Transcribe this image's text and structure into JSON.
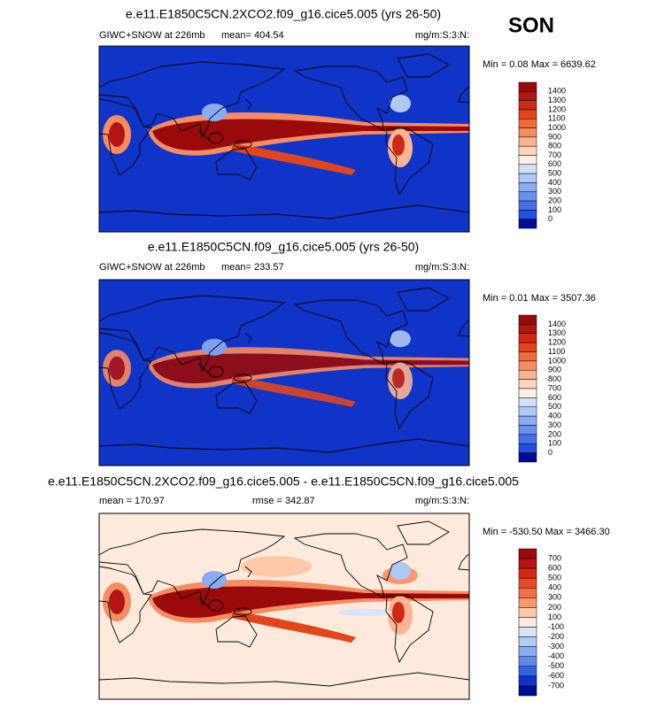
{
  "season": "SON",
  "panels": [
    {
      "title": "e.e11.E1850C5CN.2XCO2.f09_g16.cice5.005 (yrs 26-50)",
      "left_label": "GIWC+SNOW at 226mb",
      "center_label": "mean= 404.54",
      "units": "mg/m:S:3:N:",
      "min_max": "Min =  0.08 Max = 6639.62",
      "colorbar": {
        "labels": [
          1400,
          1300,
          1200,
          1100,
          1000,
          900,
          800,
          700,
          600,
          500,
          400,
          300,
          200,
          100,
          0
        ],
        "colors": [
          "#9a0a0a",
          "#b41414",
          "#cc2a14",
          "#e0461e",
          "#f06a3c",
          "#f58c64",
          "#f9b496",
          "#fcd4bc",
          "#fdf0e4",
          "#d2e0f8",
          "#b0c8f4",
          "#8cacf0",
          "#6890ec",
          "#4470e4",
          "#2050dc",
          "#000a96"
        ]
      }
    },
    {
      "title": "e.e11.E1850C5CN.f09_g16.cice5.005 (yrs 26-50)",
      "left_label": "GIWC+SNOW at 226mb",
      "center_label": "mean= 233.57",
      "units": "mg/m:S:3:N:",
      "min_max": "Min =  0.01 Max = 3507.36",
      "colorbar": {
        "labels": [
          1400,
          1300,
          1200,
          1100,
          1000,
          900,
          800,
          700,
          600,
          500,
          400,
          300,
          200,
          100,
          0
        ],
        "colors": [
          "#9a0a0a",
          "#b41414",
          "#cc2a14",
          "#e0461e",
          "#f06a3c",
          "#f58c64",
          "#f9b496",
          "#fcd4bc",
          "#fdf0e4",
          "#d2e0f8",
          "#b0c8f4",
          "#8cacf0",
          "#6890ec",
          "#4470e4",
          "#2050dc",
          "#000a96"
        ]
      }
    },
    {
      "title": "e.e11.E1850C5CN.2XCO2.f09_g16.cice5.005 - e.e11.E1850C5CN.f09_g16.cice5.005",
      "left_label": "mean = 170.97",
      "center_label": "rmse = 342.87",
      "units": "mg/m:S:3:N:",
      "min_max": "Min = -530.50 Max = 3466.30",
      "colorbar": {
        "labels": [
          700,
          600,
          500,
          400,
          300,
          200,
          100,
          -100,
          -200,
          -300,
          -400,
          -500,
          -600,
          -700
        ],
        "colors": [
          "#9a0a0a",
          "#b41414",
          "#d22814",
          "#e84a28",
          "#f27048",
          "#f89870",
          "#fcc8a8",
          "#fdeadc",
          "#d8e4f8",
          "#b4cbf4",
          "#8cacf0",
          "#6088ea",
          "#3462e2",
          "#1034c8",
          "#000a96"
        ]
      }
    }
  ]
}
